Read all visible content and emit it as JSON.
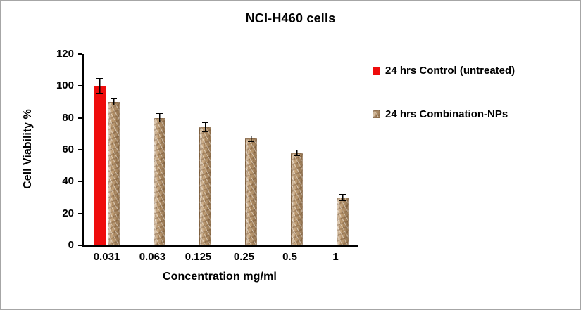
{
  "frame": {
    "border_color": "#a6a6a6",
    "background": "#ffffff"
  },
  "chart_data": {
    "type": "bar",
    "title": "NCI-H460 cells",
    "xlabel": "Concentration mg/ml",
    "ylabel": "Cell Viability %",
    "ylim": [
      0,
      120
    ],
    "ytick_interval": 20,
    "grid": false,
    "legend_position": "right",
    "categories": [
      "0.031",
      "0.063",
      "0.125",
      "0.25",
      "0.5",
      "1"
    ],
    "series": [
      {
        "name": "24 hrs Control (untreated)",
        "color": "#ee0c0c",
        "texture": false,
        "values": [
          100,
          null,
          null,
          null,
          null,
          null
        ],
        "errors": [
          5,
          null,
          null,
          null,
          null,
          null
        ]
      },
      {
        "name": "24 hrs Combination-NPs",
        "color": "#c3a178",
        "texture": true,
        "values": [
          90,
          80,
          74,
          67,
          58,
          30
        ],
        "errors": [
          2,
          3,
          3,
          2,
          2,
          2
        ]
      }
    ]
  }
}
